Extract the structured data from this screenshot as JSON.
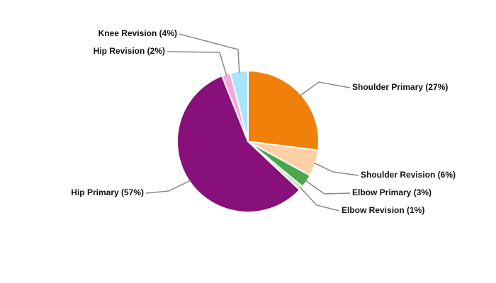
{
  "chart_data": {
    "type": "pie",
    "value_labels": [
      "Shoulder Primary (27%)",
      "Shoulder Revision (6%)",
      "Elbow Primary (3%)",
      "Elbow Revision (1%)",
      "Hip Primary (57%)",
      "Hip Revision (2%)",
      "Knee Revision (4%)"
    ],
    "values": [
      27,
      6,
      3,
      1,
      57,
      2,
      4
    ],
    "colors": [
      "#f0800a",
      "#fdd0a8",
      "#4ca64c",
      "#c8e8c0",
      "#87107a",
      "#f0a8dc",
      "#a8e4fc"
    ]
  }
}
